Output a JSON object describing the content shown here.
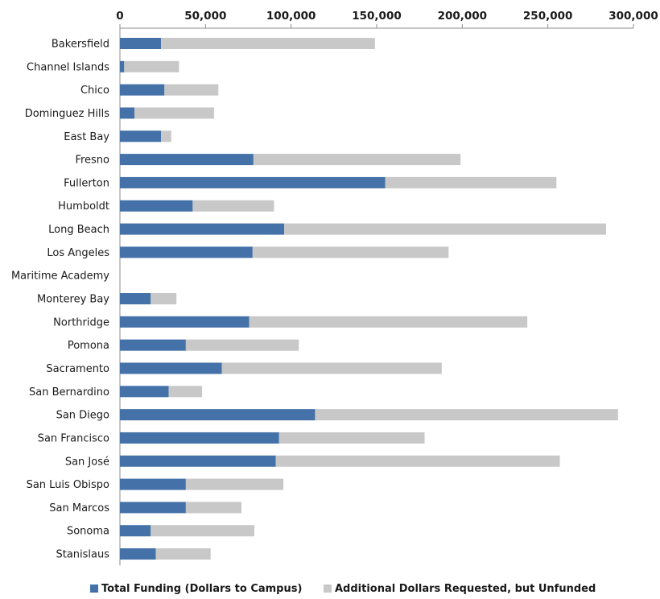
{
  "chart_data": {
    "type": "bar",
    "orientation": "horizontal",
    "stacked": true,
    "axis_position": "top",
    "grid": false,
    "legend_position": "bottom",
    "categories": [
      "Bakersfield",
      "Channel Islands",
      "Chico",
      "Dominguez Hills",
      "East Bay",
      "Fresno",
      "Fullerton",
      "Humboldt",
      "Long Beach",
      "Los Angeles",
      "Maritime Academy",
      "Monterey Bay",
      "Northridge",
      "Pomona",
      "Sacramento",
      "San Bernardino",
      "San Diego",
      "San Francisco",
      "San José",
      "San Luis Obispo",
      "San Marcos",
      "Sonoma",
      "Stanislaus"
    ],
    "series": [
      {
        "name": "Total Funding (Dollars to Campus)",
        "color": "#4472a8",
        "values": [
          24000,
          2500,
          26000,
          8500,
          24000,
          78000,
          155000,
          42500,
          96000,
          77500,
          0,
          18000,
          75500,
          38500,
          59500,
          28500,
          114000,
          93000,
          91000,
          38500,
          38500,
          18000,
          21000
        ]
      },
      {
        "name": "Additional Dollars Requested, but Unfunded",
        "color": "#c8c8c8",
        "values": [
          125000,
          32000,
          31500,
          46500,
          6000,
          121000,
          100000,
          47500,
          188000,
          114500,
          0,
          15000,
          162500,
          66000,
          128500,
          19500,
          177000,
          85000,
          166000,
          57000,
          32500,
          60500,
          32000
        ]
      }
    ],
    "xlim": [
      0,
      300000
    ],
    "xticks": [
      "0",
      "50,000",
      "100,000",
      "150,000",
      "200,000",
      "250,000",
      "300,000"
    ],
    "title": "",
    "xlabel": "",
    "ylabel": ""
  }
}
